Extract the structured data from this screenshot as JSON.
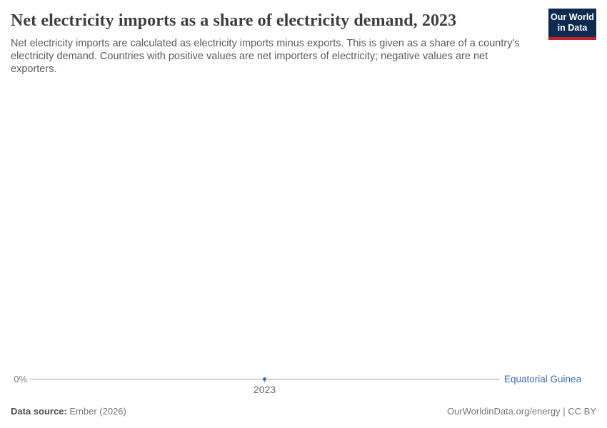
{
  "header": {
    "title": "Net electricity imports as a share of electricity demand, 2023",
    "subtitle": "Net electricity imports are calculated as electricity imports minus exports. This is given as a share of a country's electricity demand. Countries with positive values are net importers of electricity; negative values are net exporters.",
    "logo": {
      "line1": "Our World",
      "line2": "in Data"
    }
  },
  "chart_data": {
    "type": "line",
    "title": "Net electricity imports as a share of electricity demand, 2023",
    "x": [
      2023
    ],
    "series": [
      {
        "name": "Equatorial Guinea",
        "values": [
          0
        ]
      }
    ],
    "x_tick_labels": [
      "2023"
    ],
    "y_tick_labels": [
      "0%"
    ],
    "xlabel": "",
    "ylabel": "",
    "grid": "single-zero-line",
    "legend_position": "right-of-line"
  },
  "footer": {
    "datasource_label": "Data source:",
    "datasource_value": "Ember (2026)",
    "credit": "OurWorldinData.org/energy | CC BY"
  },
  "colors": {
    "series_blue": "#3d6bb3",
    "logo_navy": "#0f2a50",
    "logo_red": "#c5202e",
    "axis_gray": "#a5a5a5",
    "title_gray": "#3e3e3e",
    "subtitle_gray": "#5b5b5b"
  }
}
